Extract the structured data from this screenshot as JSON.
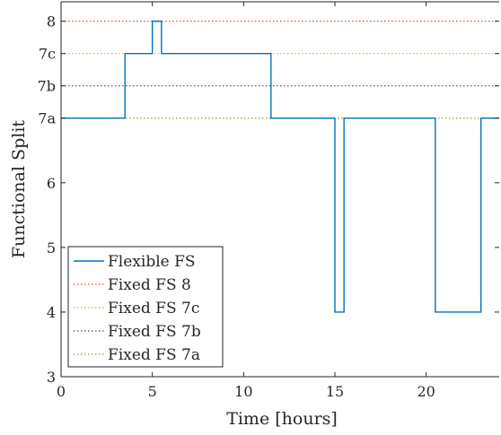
{
  "chart_data": {
    "type": "line",
    "xlabel": "Time [hours]",
    "ylabel": "Functional Split",
    "xlim": [
      0,
      24
    ],
    "ylim": [
      3,
      8.8
    ],
    "x_ticks": [
      0,
      5,
      10,
      15,
      20
    ],
    "y_ticks": [
      {
        "value": 3,
        "label": "3"
      },
      {
        "value": 4,
        "label": "4"
      },
      {
        "value": 5,
        "label": "5"
      },
      {
        "value": 6,
        "label": "6"
      },
      {
        "value": 7,
        "label": "7a"
      },
      {
        "value": 7.5,
        "label": "7b"
      },
      {
        "value": 8,
        "label": "7c"
      },
      {
        "value": 8.5,
        "label": "8"
      }
    ],
    "grid": false,
    "legend_position": "bottom-left",
    "series": [
      {
        "name": "Flexible FS",
        "color": "#0072BD",
        "style": "solid",
        "step": true,
        "x": [
          0,
          3.5,
          5.0,
          5.5,
          11.5,
          15.0,
          15.5,
          20.5,
          23.0
        ],
        "y": [
          7,
          8,
          8.5,
          8,
          7,
          4,
          7,
          4,
          7
        ]
      },
      {
        "name": "Fixed FS 8",
        "color": "#D95319",
        "style": "dotted",
        "constant": 8.5
      },
      {
        "name": "Fixed FS 7c",
        "color": "#EDB120",
        "style": "dotted",
        "constant": 8
      },
      {
        "name": "Fixed FS 7b",
        "color": "#7E2F8E",
        "style": "dotted",
        "constant": 7.5
      },
      {
        "name": "Fixed FS 7a",
        "color": "#77AC30",
        "style": "dotted",
        "constant": 7
      }
    ]
  }
}
